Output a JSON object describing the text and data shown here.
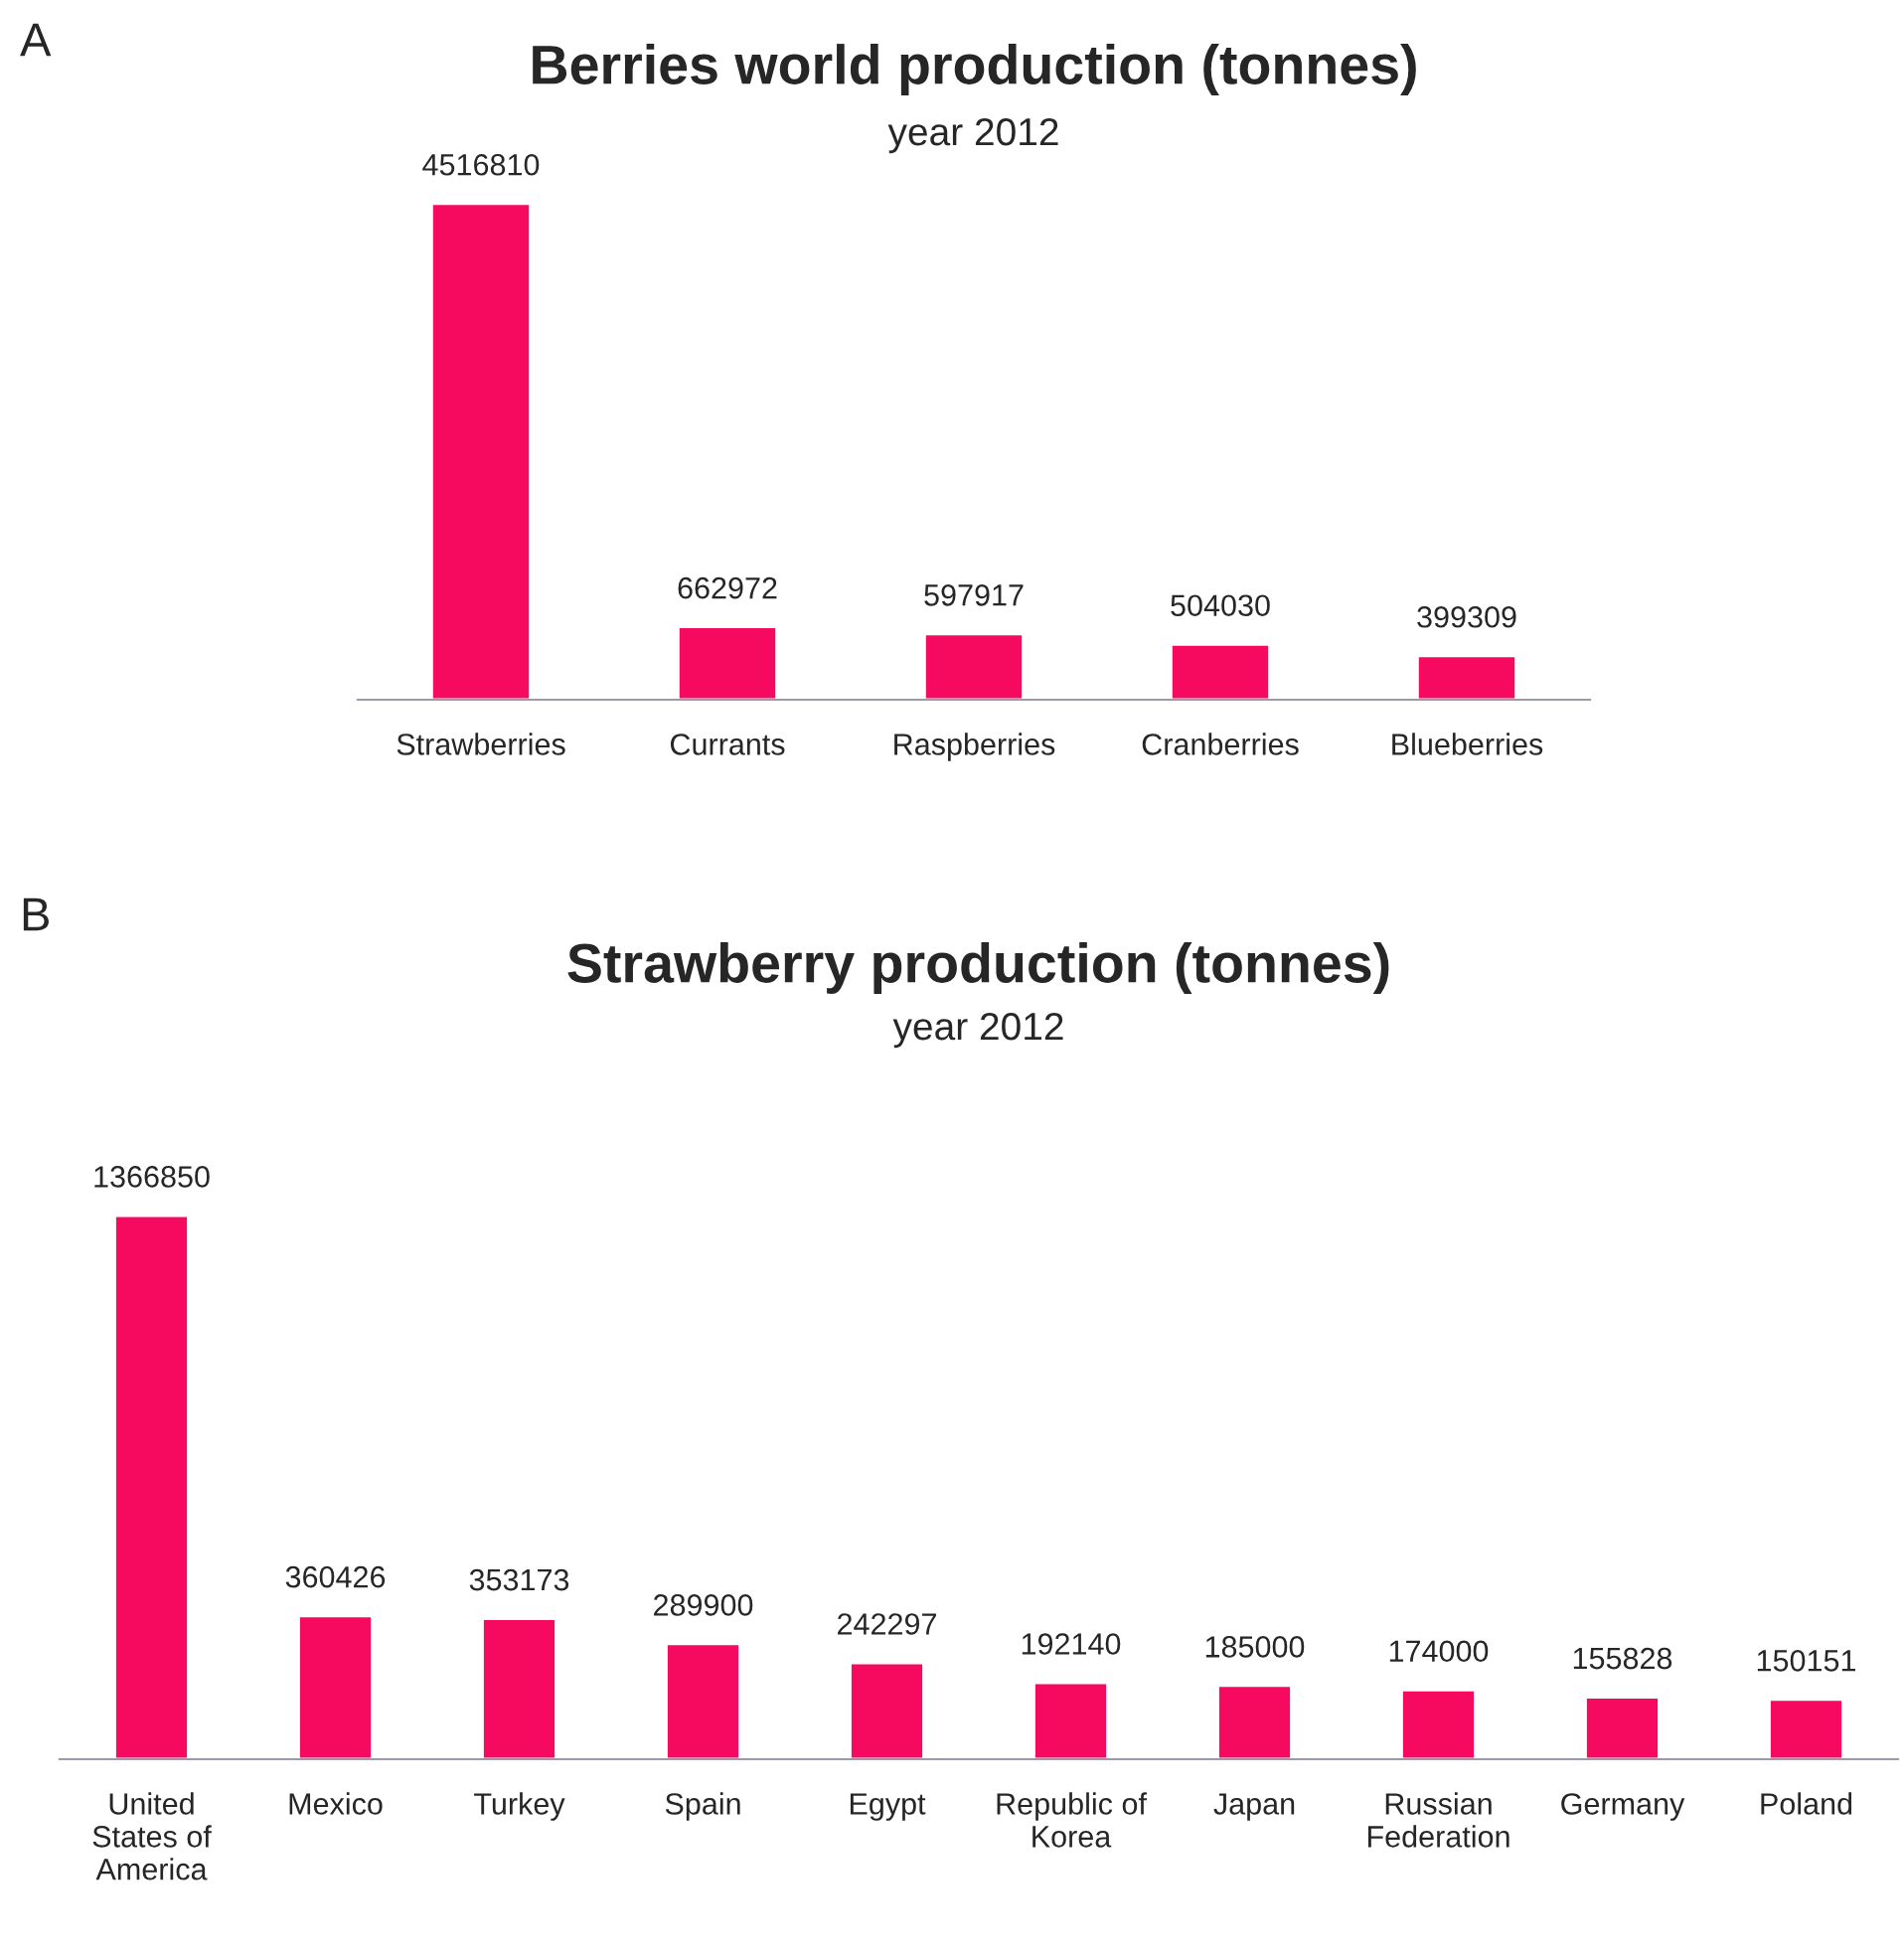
{
  "chart_data": [
    {
      "type": "bar",
      "title": "Berries world production (tonnes)",
      "subtitle": "year 2012",
      "annotations": [
        "A"
      ],
      "categories": [
        "Strawberries",
        "Currants",
        "Raspberries",
        "Cranberries",
        "Blueberries"
      ],
      "series": [
        {
          "color": "#f50a60",
          "values": [
            4516810,
            662972,
            597917,
            504030,
            399309
          ]
        }
      ],
      "data_labels": true
    },
    {
      "type": "bar",
      "title": "Strawberry production (tonnes)",
      "subtitle": "year 2012",
      "annotations": [
        "B"
      ],
      "categories": [
        "United\nStates of\nAmerica",
        "Mexico",
        "Turkey",
        "Spain",
        "Egypt",
        "Republic of\nKorea",
        "Japan",
        "Russian\nFederation",
        "Germany",
        "Poland"
      ],
      "series": [
        {
          "color": "#f50a60",
          "values": [
            1366850,
            360426,
            353173,
            289900,
            242297,
            192140,
            185000,
            174000,
            155828,
            150151
          ]
        }
      ],
      "data_labels": true
    }
  ]
}
